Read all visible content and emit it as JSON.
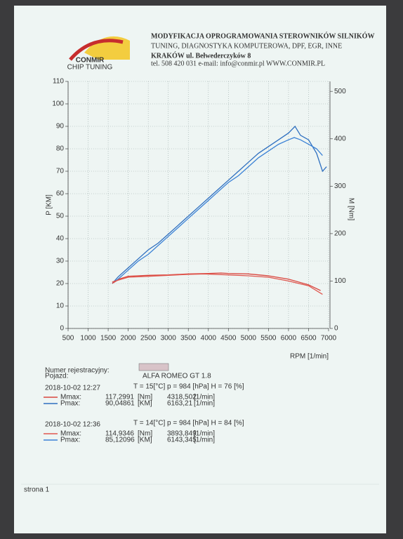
{
  "header": {
    "logo": "CONMIR",
    "logo_sub": "CHIP TUNING",
    "title": "MODYFIKACJA OPROGRAMOWANIA STEROWNIKÓW SILNIKÓW",
    "subtitle": "TUNING, DIAGNOSTYKA KOMPUTEROWA, DPF, EGR, INNE",
    "address": "KRAKÓW ul. Bełwederczyków 8",
    "contact": "tel. 508 420 031   e-mail: info@conmir.pl   WWW.CONMIR.PL"
  },
  "chart_data": {
    "type": "line",
    "y_label": "P [KM]",
    "y2_label": "M [Nm]",
    "x_label": "RPM [1/min]",
    "xlim": [
      500,
      7000
    ],
    "xticks": [
      500,
      1000,
      1500,
      2000,
      2500,
      3000,
      3500,
      4000,
      4500,
      5000,
      5500,
      6000,
      6500,
      7000
    ],
    "ylim": [
      0,
      110
    ],
    "yticks": [
      0,
      10,
      20,
      30,
      40,
      50,
      60,
      70,
      80,
      90,
      100,
      110
    ],
    "y2lim": [
      0,
      521
    ],
    "y2ticks": [
      0,
      100,
      200,
      300,
      400,
      500
    ],
    "grid": true,
    "series": [
      {
        "color": "#2e6fc0",
        "x": [
          1600,
          1750,
          2000,
          2250,
          2500,
          2750,
          3000,
          3250,
          3500,
          3750,
          4000,
          4250,
          4500,
          4750,
          5000,
          5250,
          5500,
          5750,
          6000,
          6163,
          6300,
          6500,
          6700,
          6850,
          6950
        ],
        "values": [
          20,
          23,
          27,
          31,
          35,
          38,
          42,
          46,
          50,
          54,
          58,
          62,
          66,
          70,
          74,
          78,
          81,
          84,
          87,
          90,
          86,
          84,
          78,
          70,
          72
        ]
      },
      {
        "color": "#3b82d6",
        "x": [
          1600,
          1750,
          2000,
          2250,
          2500,
          2750,
          3000,
          3250,
          3500,
          3750,
          4000,
          4250,
          4500,
          4750,
          5000,
          5250,
          5500,
          5750,
          6000,
          6143,
          6300,
          6500,
          6700,
          6850
        ],
        "values": [
          20,
          22,
          26,
          30,
          33,
          37,
          41,
          45,
          49,
          53,
          57,
          61,
          65,
          68,
          72,
          76,
          79,
          82,
          84,
          85,
          84,
          82,
          80,
          77
        ]
      },
      {
        "color": "#d9463e",
        "axis": "y2",
        "x": [
          1600,
          1800,
          2000,
          2500,
          3000,
          3500,
          4000,
          4318,
          4500,
          5000,
          5500,
          6000,
          6500,
          6800
        ],
        "values": [
          95,
          105,
          110,
          112,
          113,
          115,
          116,
          117,
          116,
          115,
          111,
          104,
          92,
          80
        ]
      },
      {
        "color": "#e0574f",
        "axis": "y2",
        "x": [
          1600,
          2000,
          2500,
          3000,
          3500,
          3894,
          4500,
          5000,
          5500,
          6000,
          6500,
          6850
        ],
        "values": [
          98,
          108,
          110,
          112,
          114,
          115,
          113,
          111,
          108,
          100,
          90,
          72
        ]
      }
    ]
  },
  "vehicle": {
    "reg_label": "Numer rejestracyjny:",
    "vehicle_label": "Pojazd:",
    "vehicle": "ALFA ROMEO   GT 1.8"
  },
  "runs": [
    {
      "datetime": "2018-10-02  12:27",
      "conditions": "T = 15[°C]  p = 984 [hPa]  H = 76 [%]",
      "rows": [
        [
          "Mmax:",
          "117,2991",
          "[Nm]",
          "4318,502",
          "[1/min]"
        ],
        [
          "Pmax:",
          "90,04861",
          "[KM]",
          "6163,21",
          "[1/min]"
        ]
      ]
    },
    {
      "datetime": "2018-10-02  12:36",
      "conditions": "T = 14[°C]  p = 984 [hPa]  H = 84 [%]",
      "rows": [
        [
          "Mmax:",
          "114,9346",
          "[Nm]",
          "3893,849",
          "[1/min]"
        ],
        [
          "Pmax:",
          "85,12096",
          "[KM]",
          "6143,345",
          "[1/min]"
        ]
      ]
    }
  ],
  "footer": {
    "page": "strona 1"
  }
}
